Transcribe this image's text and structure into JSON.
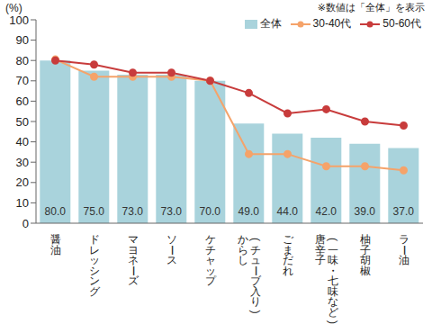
{
  "chart_data": {
    "type": "bar",
    "y_label": "(%)",
    "annotation": "※数値は「全体」を表示",
    "categories": [
      "醤油",
      "ドレッシング",
      "マヨネーズ",
      "ソース",
      "ケチャップ",
      "からし(チューブ入り)",
      "ごまだれ",
      "唐辛子(一味・七味など)",
      "柚子胡椒",
      "ラー油"
    ],
    "series": [
      {
        "name": "全体",
        "type": "bar",
        "color": "#a9d3dc",
        "values": [
          80,
          75,
          73,
          73,
          70,
          49,
          44,
          42,
          39,
          37
        ],
        "value_labels": [
          "80.0",
          "75.0",
          "73.0",
          "73.0",
          "70.0",
          "49.0",
          "44.0",
          "42.0",
          "39.0",
          "37.0"
        ],
        "data_labels": true
      },
      {
        "name": "30-40代",
        "type": "line",
        "color": "#f5a36a",
        "marker": "circle",
        "values": [
          80.5,
          72,
          72,
          72,
          70,
          34,
          34,
          28,
          28,
          26
        ]
      },
      {
        "name": "50-60代",
        "type": "line",
        "color": "#c83c3c",
        "marker": "circle",
        "values": [
          80,
          78,
          74,
          74,
          70,
          64,
          54,
          56,
          50,
          48
        ]
      }
    ],
    "ylim": [
      0,
      100
    ],
    "yticks": [
      0,
      10,
      20,
      30,
      40,
      50,
      60,
      70,
      80,
      90,
      100
    ],
    "grid": false
  }
}
